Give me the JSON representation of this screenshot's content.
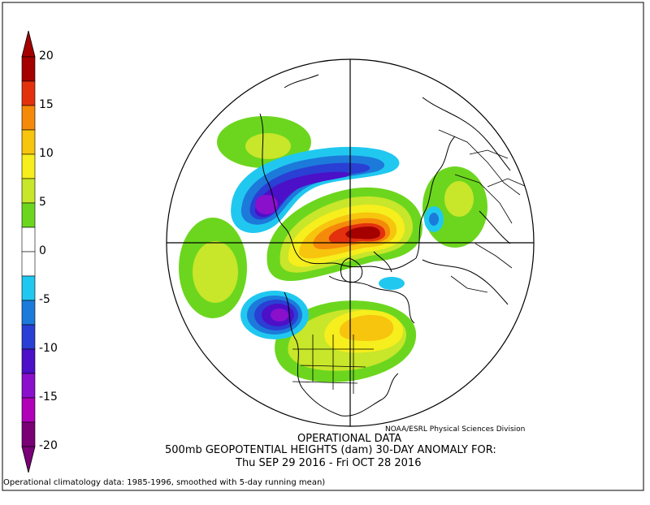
{
  "colorbar": {
    "labels": [
      "20",
      "15",
      "10",
      "5",
      "0",
      "-5",
      "-10",
      "-15",
      "-20"
    ],
    "colors": [
      "#a50000",
      "#e3310e",
      "#f58a0a",
      "#f7c40e",
      "#f6ee1d",
      "#c8e62a",
      "#6cd61e",
      "#ffffff",
      "#ffffff",
      "#20c8f0",
      "#1c7adb",
      "#2a3fd4",
      "#4b10c8",
      "#8a10cc",
      "#b000b8",
      "#7a0075"
    ]
  },
  "credit": "NOAA/ESRL Physical Sciences Division",
  "title": {
    "line1": "OPERATIONAL DATA",
    "line2": "500mb GEOPOTENTIAL HEIGHTS (dam)    30-DAY ANOMALY FOR:",
    "line3": "Thu SEP 29 2016 - Fri OCT 28 2016"
  },
  "footnote": "Operational climatology data: 1985-1996, smoothed with 5-day running mean)"
}
